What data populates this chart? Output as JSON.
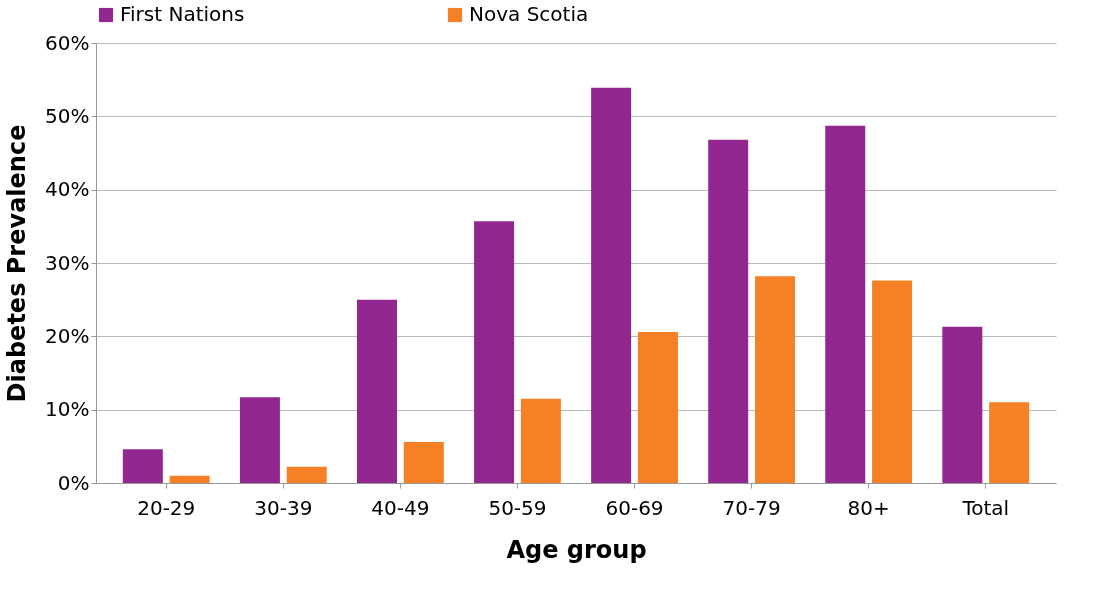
{
  "chart_data": {
    "type": "bar",
    "xlabel": "Age group",
    "ylabel": "Diabetes Prevalence",
    "categories": [
      "20-29",
      "30-39",
      "40-49",
      "50-59",
      "60-69",
      "70-79",
      "80+",
      "Total"
    ],
    "series": [
      {
        "name": "First Nations",
        "color": "#92278f",
        "values": [
          4.6,
          11.7,
          25.0,
          35.7,
          53.9,
          46.8,
          48.7,
          21.3
        ]
      },
      {
        "name": "Nova Scotia",
        "color": "#f58025",
        "values": [
          1.0,
          2.2,
          5.6,
          11.5,
          20.6,
          28.2,
          27.6,
          11.0
        ]
      }
    ],
    "ylim": [
      0,
      60
    ],
    "yticks": [
      {
        "value": 0,
        "label": "0%"
      },
      {
        "value": 10,
        "label": "10%"
      },
      {
        "value": 20,
        "label": "20%"
      },
      {
        "value": 30,
        "label": "30%"
      },
      {
        "value": 40,
        "label": "40%"
      },
      {
        "value": 50,
        "label": "50%"
      },
      {
        "value": 60,
        "label": "60%"
      }
    ],
    "grid": "y",
    "legend": "top"
  }
}
